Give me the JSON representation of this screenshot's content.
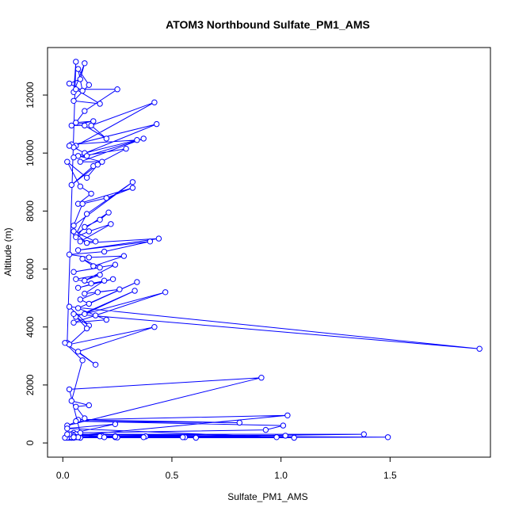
{
  "chart_data": {
    "type": "line",
    "title": "ATOM3 Northbound Sulfate_PM1_AMS",
    "xlabel": "Sulfate_PM1_AMS",
    "ylabel": "Altitude (m)",
    "xlim": [
      -0.07,
      1.96
    ],
    "ylim": [
      -490,
      13640
    ],
    "xticks": [
      0.0,
      0.5,
      1.0,
      1.5
    ],
    "xtick_labels": [
      "0.0",
      "0.5",
      "1.0",
      "1.5"
    ],
    "yticks": [
      0,
      2000,
      4000,
      6000,
      8000,
      10000,
      12000
    ],
    "ytick_labels": [
      "0",
      "2000",
      "4000",
      "6000",
      "8000",
      "10000",
      "12000"
    ],
    "grid": false,
    "series_color": "#0000ff",
    "marker": "open-circle",
    "series": [
      {
        "x": [
          0.02,
          0.06,
          0.05,
          0.1,
          0.08,
          0.03,
          0.09,
          0.07,
          0.12,
          0.05,
          0.17,
          0.06,
          0.25,
          0.1,
          0.06,
          0.14,
          0.04,
          0.1,
          0.2,
          0.13,
          0.42,
          0.06,
          0.04,
          0.34,
          0.1,
          0.05,
          0.03,
          0.43,
          0.07,
          0.18,
          0.08,
          0.37,
          0.11,
          0.05,
          0.29,
          0.14,
          0.04,
          0.16,
          0.11,
          0.02,
          0.08,
          0.13,
          0.07,
          0.32,
          0.2,
          0.09,
          0.05,
          0.32,
          0.11,
          0.06,
          0.21,
          0.17,
          0.1,
          0.06,
          0.12,
          0.22,
          0.08,
          0.15,
          0.05,
          0.11,
          0.44,
          0.07,
          0.4,
          0.19,
          0.03,
          0.12,
          0.28,
          0.14,
          0.09,
          0.17,
          0.05,
          0.24,
          0.1,
          0.17,
          0.06,
          0.13,
          0.23,
          0.07,
          0.19,
          0.1,
          0.26,
          0.16,
          0.08,
          0.12,
          0.34,
          0.07,
          0.15,
          0.2,
          0.05,
          0.47,
          0.1,
          0.33,
          0.06,
          0.12,
          0.03,
          1.91,
          0.05,
          0.11,
          0.03,
          0.42,
          0.07,
          0.15,
          0.01,
          0.09,
          0.04,
          0.12,
          0.06,
          0.1,
          0.02,
          0.91,
          0.03,
          0.08,
          0.05,
          1.03,
          0.07,
          0.81,
          0.06,
          1.01,
          0.93,
          0.05,
          0.24,
          0.02,
          0.98,
          0.04,
          1.02,
          0.06,
          1.38,
          0.08,
          1.06,
          0.05,
          1.49,
          0.03,
          0.61,
          0.06,
          0.56,
          0.04,
          0.38,
          0.07,
          0.55,
          0.05,
          0.38,
          0.18,
          0.24,
          0.02,
          0.17,
          0.04,
          0.24,
          0.06,
          0.37,
          0.01,
          0.25,
          0.07,
          0.19,
          0.03,
          0.24,
          0.02,
          0.05
        ],
        "y": [
          3450,
          13150,
          12100,
          13100,
          12550,
          12400,
          12150,
          12900,
          12350,
          11800,
          11700,
          12200,
          12200,
          11450,
          11050,
          11100,
          10950,
          10950,
          10500,
          10950,
          11750,
          10250,
          10300,
          10450,
          10000,
          10200,
          10250,
          11000,
          9900,
          9700,
          9700,
          10500,
          9900,
          9850,
          10150,
          9550,
          8900,
          9600,
          9150,
          9700,
          8850,
          8600,
          8250,
          8800,
          8450,
          8250,
          7500,
          9000,
          7900,
          7200,
          7950,
          7700,
          7450,
          7100,
          7300,
          7550,
          6950,
          6950,
          7300,
          6900,
          7050,
          6650,
          6950,
          6600,
          6500,
          6400,
          6450,
          6100,
          6350,
          6050,
          5900,
          6150,
          5600,
          5800,
          5650,
          5500,
          5650,
          5350,
          5600,
          5150,
          5300,
          5200,
          4950,
          4800,
          5550,
          4650,
          4400,
          4250,
          4150,
          5200,
          4450,
          5250,
          4350,
          4050,
          4700,
          3250,
          4450,
          3950,
          3400,
          4000,
          3150,
          2700,
          3450,
          2850,
          1450,
          1300,
          1250,
          850,
          600,
          2250,
          1850,
          350,
          250,
          950,
          800,
          700,
          750,
          600,
          450,
          350,
          650,
          500,
          200,
          300,
          250,
          300,
          300,
          180,
          180,
          250,
          200,
          180,
          180,
          200,
          200,
          180,
          230,
          200,
          200,
          180,
          230,
          240,
          200,
          180,
          230,
          200,
          240,
          200,
          200,
          180,
          190,
          200,
          200,
          300,
          220,
          300,
          200
        ]
      }
    ]
  }
}
